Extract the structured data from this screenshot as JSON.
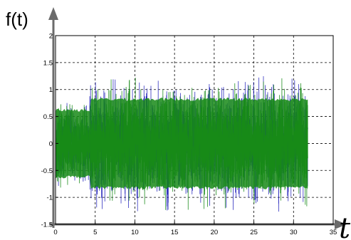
{
  "chart_data": {
    "type": "line",
    "title": "",
    "xlabel": "t",
    "ylabel": "f(t)",
    "xlim": [
      0,
      35
    ],
    "ylim": [
      -1.5,
      2
    ],
    "x_ticks": [
      0,
      5,
      10,
      15,
      20,
      25,
      30,
      35
    ],
    "y_ticks": [
      -1.5,
      -1,
      -0.5,
      0,
      0.5,
      1,
      1.5,
      2
    ],
    "x_tick_labels": [
      "0",
      "5",
      "10",
      "15",
      "20",
      "25",
      "30",
      "35"
    ],
    "y_tick_labels": [
      "-1.5",
      "-1",
      "-0.5",
      "0",
      "0.5",
      "1",
      "1.5",
      "2"
    ],
    "grid": true,
    "x_range_of_signal": [
      0,
      31.8
    ],
    "envelope": {
      "x": [
        0,
        4.2,
        4.4,
        7,
        10,
        13,
        15.5,
        16,
        18,
        20,
        23,
        26,
        28,
        30,
        31.8
      ],
      "upper": [
        0.85,
        0.7,
        1.15,
        1.2,
        1.25,
        1.3,
        1.35,
        1.45,
        1.25,
        1.2,
        1.2,
        1.25,
        1.3,
        1.2,
        1.15
      ],
      "lower": [
        -0.85,
        -0.7,
        -1.15,
        -1.3,
        -1.3,
        -1.2,
        -1.35,
        -1.45,
        -1.3,
        -1.2,
        -1.25,
        -1.25,
        -1.3,
        -1.2,
        -1.35
      ]
    },
    "series": [
      {
        "color": "#1a1ab8",
        "rms": [
          0.3,
          0.42
        ]
      },
      {
        "color": "#188a18",
        "rms": [
          0.29,
          0.4
        ]
      }
    ]
  }
}
